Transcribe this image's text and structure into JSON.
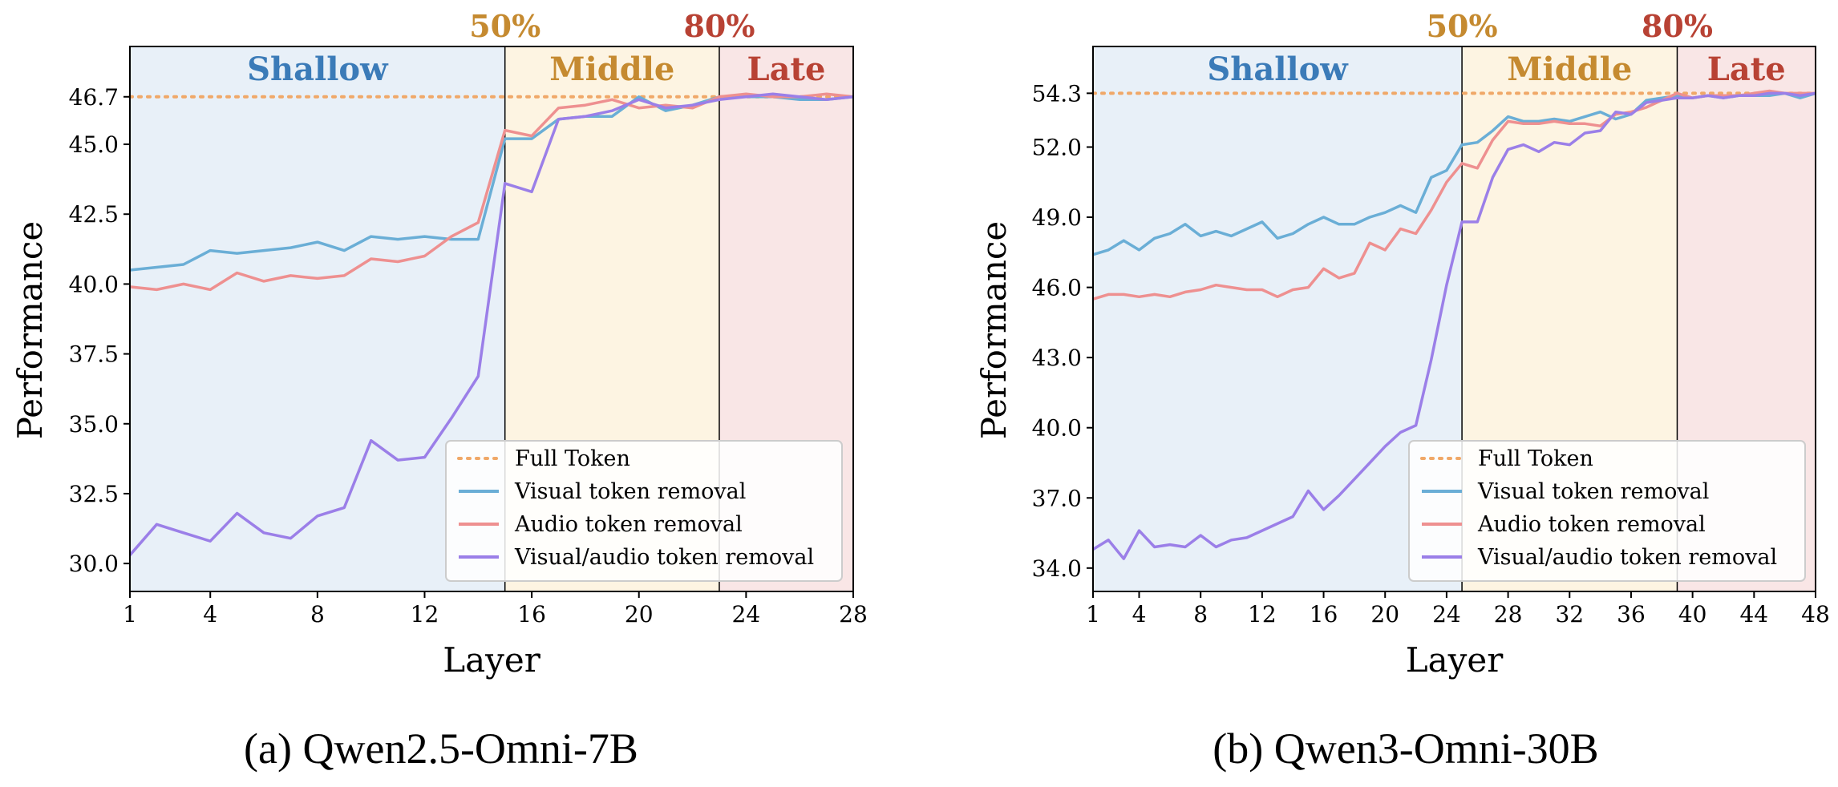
{
  "figure": {
    "captions": [
      "(a) Qwen2.5-Omni-7B",
      "(b) Qwen3-Omni-30B"
    ]
  },
  "colors": {
    "full_token": "#f0a868",
    "visual": "#6aaed6",
    "audio": "#ee9090",
    "visual_audio": "#9b7fe8",
    "region_shallow": "#e8f0f8",
    "region_middle": "#fdf4e2",
    "region_late": "#f9e6e6",
    "label_shallow": "#3b7bb8",
    "label_middle": "#c58a30",
    "label_late": "#b84234",
    "label_pct_50": "#c58a30",
    "label_pct_80": "#b84234"
  },
  "chart_data": [
    {
      "type": "line",
      "caption": "(a) Qwen2.5-Omni-7B",
      "xlabel": "Layer",
      "ylabel": "Performance",
      "xlim": [
        1,
        28
      ],
      "ylim": [
        29.0,
        48.5
      ],
      "xticks": [
        1,
        4,
        8,
        12,
        16,
        20,
        24,
        28
      ],
      "yticks": [
        30.0,
        32.5,
        35.0,
        37.5,
        40.0,
        42.5,
        45.0,
        46.7
      ],
      "ytick_labels": [
        "30.0",
        "32.5",
        "35.0",
        "37.5",
        "40.0",
        "42.5",
        "45.0",
        "46.7"
      ],
      "regions": [
        {
          "label": "Shallow",
          "x0": 1,
          "x1": 15
        },
        {
          "label": "Middle",
          "x0": 15,
          "x1": 23
        },
        {
          "label": "Late",
          "x0": 23,
          "x1": 28
        }
      ],
      "markers": [
        {
          "label": "50%",
          "x": 15
        },
        {
          "label": "80%",
          "x": 23
        }
      ],
      "full_token": {
        "name": "Full Token",
        "value": 46.7
      },
      "x": [
        1,
        2,
        3,
        4,
        5,
        6,
        7,
        8,
        9,
        10,
        11,
        12,
        13,
        14,
        15,
        16,
        17,
        18,
        19,
        20,
        21,
        22,
        23,
        24,
        25,
        26,
        27,
        28
      ],
      "series": [
        {
          "name": "Visual token removal",
          "values": [
            40.5,
            40.6,
            40.7,
            41.2,
            41.1,
            41.2,
            41.3,
            41.5,
            41.2,
            41.7,
            41.6,
            41.7,
            41.6,
            41.6,
            45.2,
            45.2,
            45.9,
            46.0,
            46.0,
            46.7,
            46.2,
            46.4,
            46.7,
            46.7,
            46.7,
            46.6,
            46.6,
            46.7
          ]
        },
        {
          "name": "Audio token removal",
          "values": [
            39.9,
            39.8,
            40.0,
            39.8,
            40.4,
            40.1,
            40.3,
            40.2,
            40.3,
            40.9,
            40.8,
            41.0,
            41.7,
            42.2,
            45.5,
            45.3,
            46.3,
            46.4,
            46.6,
            46.3,
            46.4,
            46.3,
            46.7,
            46.8,
            46.7,
            46.7,
            46.8,
            46.7
          ]
        },
        {
          "name": "Visual/audio token removal",
          "values": [
            30.3,
            31.4,
            31.1,
            30.8,
            31.8,
            31.1,
            30.9,
            31.7,
            32.0,
            34.4,
            33.7,
            33.8,
            35.2,
            36.7,
            43.6,
            43.3,
            45.9,
            46.0,
            46.2,
            46.6,
            46.3,
            46.4,
            46.6,
            46.7,
            46.8,
            46.7,
            46.6,
            46.7
          ]
        }
      ],
      "legend_position": "lower-right"
    },
    {
      "type": "line",
      "caption": "(b) Qwen3-Omni-30B",
      "xlabel": "Layer",
      "ylabel": "Performance",
      "xlim": [
        1,
        48
      ],
      "ylim": [
        33.0,
        56.3
      ],
      "xticks": [
        1,
        4,
        8,
        12,
        16,
        20,
        24,
        28,
        32,
        36,
        40,
        44,
        48
      ],
      "yticks": [
        34.0,
        37.0,
        40.0,
        43.0,
        46.0,
        49.0,
        52.0,
        54.3
      ],
      "ytick_labels": [
        "34.0",
        "37.0",
        "40.0",
        "43.0",
        "46.0",
        "49.0",
        "52.0",
        "54.3"
      ],
      "regions": [
        {
          "label": "Shallow",
          "x0": 1,
          "x1": 25
        },
        {
          "label": "Middle",
          "x0": 25,
          "x1": 39
        },
        {
          "label": "Late",
          "x0": 39,
          "x1": 48
        }
      ],
      "markers": [
        {
          "label": "50%",
          "x": 25
        },
        {
          "label": "80%",
          "x": 39
        }
      ],
      "full_token": {
        "name": "Full Token",
        "value": 54.3
      },
      "x": [
        1,
        2,
        3,
        4,
        5,
        6,
        7,
        8,
        9,
        10,
        11,
        12,
        13,
        14,
        15,
        16,
        17,
        18,
        19,
        20,
        21,
        22,
        23,
        24,
        25,
        26,
        27,
        28,
        29,
        30,
        31,
        32,
        33,
        34,
        35,
        36,
        37,
        38,
        39,
        40,
        41,
        42,
        43,
        44,
        45,
        46,
        47,
        48
      ],
      "series": [
        {
          "name": "Visual token removal",
          "values": [
            47.4,
            47.6,
            48.0,
            47.6,
            48.1,
            48.3,
            48.7,
            48.2,
            48.4,
            48.2,
            48.5,
            48.8,
            48.1,
            48.3,
            48.7,
            49.0,
            48.7,
            48.7,
            49.0,
            49.2,
            49.5,
            49.2,
            50.7,
            51.0,
            52.1,
            52.2,
            52.7,
            53.3,
            53.1,
            53.1,
            53.2,
            53.1,
            53.3,
            53.5,
            53.2,
            53.4,
            54.0,
            54.1,
            54.2,
            54.1,
            54.2,
            54.1,
            54.2,
            54.2,
            54.2,
            54.3,
            54.1,
            54.3
          ]
        },
        {
          "name": "Audio token removal",
          "values": [
            45.5,
            45.7,
            45.7,
            45.6,
            45.7,
            45.6,
            45.8,
            45.9,
            46.1,
            46.0,
            45.9,
            45.9,
            45.6,
            45.9,
            46.0,
            46.8,
            46.4,
            46.6,
            47.9,
            47.6,
            48.5,
            48.3,
            49.3,
            50.5,
            51.3,
            51.1,
            52.3,
            53.1,
            53.0,
            53.0,
            53.1,
            53.0,
            53.0,
            52.9,
            53.4,
            53.5,
            53.7,
            54.0,
            54.3,
            54.1,
            54.2,
            54.2,
            54.2,
            54.3,
            54.4,
            54.3,
            54.3,
            54.3
          ]
        },
        {
          "name": "Visual/audio token removal",
          "values": [
            34.8,
            35.2,
            34.4,
            35.6,
            34.9,
            35.0,
            34.9,
            35.4,
            34.9,
            35.2,
            35.3,
            35.6,
            35.9,
            36.2,
            37.3,
            36.5,
            37.1,
            37.8,
            38.5,
            39.2,
            39.8,
            40.1,
            42.9,
            46.1,
            48.8,
            48.8,
            50.7,
            51.9,
            52.1,
            51.8,
            52.2,
            52.1,
            52.6,
            52.7,
            53.5,
            53.4,
            53.9,
            54.0,
            54.1,
            54.1,
            54.2,
            54.1,
            54.2,
            54.2,
            54.3,
            54.3,
            54.2,
            54.3
          ]
        }
      ],
      "legend_position": "lower-right"
    }
  ]
}
